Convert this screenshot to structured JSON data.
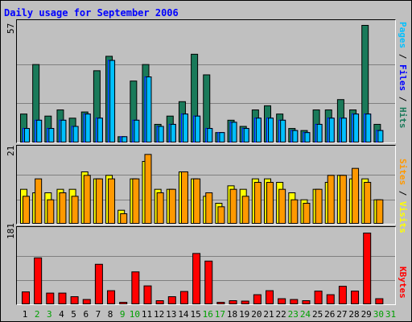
{
  "title": "Daily usage for September 2006",
  "colors": {
    "hits": "#1a7a5a",
    "files": "#00c0ff",
    "files_edge": "#0000ff",
    "pages": "#00c0ff",
    "sites": "#ff9900",
    "visits": "#ffff00",
    "kbytes": "#ff0000",
    "weekend_day": "#00a000"
  },
  "chart_data": [
    {
      "type": "bar",
      "ylim": [
        0,
        57
      ],
      "ymax_label": "57",
      "right_label": [
        {
          "text": "Pages",
          "color": "#00c0ff"
        },
        {
          "text": " / ",
          "color": "#000000"
        },
        {
          "text": "Files",
          "color": "#0000ff"
        },
        {
          "text": " / ",
          "color": "#000000"
        },
        {
          "text": "Hits",
          "color": "#1a7a5a"
        }
      ],
      "categories": [
        "1",
        "2",
        "3",
        "4",
        "5",
        "6",
        "7",
        "8",
        "9",
        "10",
        "11",
        "12",
        "13",
        "14",
        "15",
        "16",
        "17",
        "18",
        "19",
        "20",
        "21",
        "22",
        "23",
        "24",
        "25",
        "26",
        "27",
        "28",
        "29",
        "30",
        "31"
      ],
      "series": [
        {
          "name": "Hits",
          "values": [
            14,
            38,
            13,
            16,
            12,
            15,
            35,
            42,
            3,
            30,
            38,
            9,
            13,
            20,
            43,
            33,
            5,
            11,
            8,
            16,
            18,
            14,
            7,
            6,
            16,
            16,
            21,
            16,
            57,
            9,
            0
          ]
        },
        {
          "name": "Files",
          "values": [
            7,
            11,
            7,
            11,
            8,
            14,
            12,
            40,
            3,
            11,
            32,
            8,
            9,
            14,
            13,
            7,
            5,
            10,
            7,
            12,
            12,
            11,
            6,
            5,
            9,
            12,
            12,
            14,
            14,
            6,
            0
          ]
        },
        {
          "name": "Pages",
          "values": [
            7,
            11,
            7,
            11,
            8,
            14,
            12,
            40,
            3,
            11,
            32,
            8,
            9,
            14,
            13,
            7,
            5,
            10,
            7,
            12,
            12,
            11,
            6,
            5,
            9,
            12,
            12,
            14,
            14,
            6,
            0
          ]
        }
      ]
    },
    {
      "type": "bar",
      "ylim": [
        0,
        21
      ],
      "ymax_label": "21",
      "right_label": [
        {
          "text": "Sites",
          "color": "#ff9900"
        },
        {
          "text": " / ",
          "color": "#000000"
        },
        {
          "text": "Visits",
          "color": "#ffff00"
        }
      ],
      "categories": [
        "1",
        "2",
        "3",
        "4",
        "5",
        "6",
        "7",
        "8",
        "9",
        "10",
        "11",
        "12",
        "13",
        "14",
        "15",
        "16",
        "17",
        "18",
        "19",
        "20",
        "21",
        "22",
        "23",
        "24",
        "25",
        "26",
        "27",
        "28",
        "29",
        "30",
        "31"
      ],
      "series": [
        {
          "name": "Visits",
          "values": [
            10,
            9,
            9,
            10,
            10,
            15,
            13,
            14,
            4,
            13,
            18,
            10,
            10,
            15,
            13,
            8,
            6,
            11,
            10,
            13,
            13,
            12,
            9,
            7,
            10,
            12,
            14,
            13,
            13,
            7,
            0
          ]
        },
        {
          "name": "Sites",
          "values": [
            8,
            13,
            7,
            9,
            8,
            14,
            13,
            13,
            3,
            13,
            20,
            9,
            10,
            15,
            13,
            9,
            5,
            10,
            8,
            12,
            12,
            10,
            7,
            6,
            10,
            14,
            14,
            16,
            12,
            7,
            0
          ]
        }
      ]
    },
    {
      "type": "bar",
      "ylim": [
        0,
        181
      ],
      "ymax_label": "181",
      "right_label": [
        {
          "text": "KBytes",
          "color": "#ff0000"
        }
      ],
      "categories": [
        "1",
        "2",
        "3",
        "4",
        "5",
        "6",
        "7",
        "8",
        "9",
        "10",
        "11",
        "12",
        "13",
        "14",
        "15",
        "16",
        "17",
        "18",
        "19",
        "20",
        "21",
        "22",
        "23",
        "24",
        "25",
        "26",
        "27",
        "28",
        "29",
        "30",
        "31"
      ],
      "series": [
        {
          "name": "KBytes",
          "values": [
            32,
            117,
            29,
            29,
            20,
            13,
            101,
            35,
            6,
            82,
            47,
            10,
            20,
            33,
            128,
            109,
            6,
            10,
            9,
            25,
            35,
            15,
            13,
            10,
            34,
            25,
            46,
            34,
            179,
            15,
            0
          ]
        }
      ]
    }
  ],
  "day_labels": [
    {
      "text": "1",
      "weekend": false
    },
    {
      "text": "2",
      "weekend": true
    },
    {
      "text": "3",
      "weekend": true
    },
    {
      "text": "4",
      "weekend": false
    },
    {
      "text": "5",
      "weekend": false
    },
    {
      "text": "6",
      "weekend": false
    },
    {
      "text": "7",
      "weekend": false
    },
    {
      "text": "8",
      "weekend": false
    },
    {
      "text": "9",
      "weekend": true
    },
    {
      "text": "10",
      "weekend": true
    },
    {
      "text": "11",
      "weekend": false
    },
    {
      "text": "12",
      "weekend": false
    },
    {
      "text": "13",
      "weekend": false
    },
    {
      "text": "14",
      "weekend": false
    },
    {
      "text": "15",
      "weekend": false
    },
    {
      "text": "16",
      "weekend": true
    },
    {
      "text": "17",
      "weekend": true
    },
    {
      "text": "18",
      "weekend": false
    },
    {
      "text": "19",
      "weekend": false
    },
    {
      "text": "20",
      "weekend": false
    },
    {
      "text": "21",
      "weekend": false
    },
    {
      "text": "22",
      "weekend": false
    },
    {
      "text": "23",
      "weekend": true
    },
    {
      "text": "24",
      "weekend": true
    },
    {
      "text": "25",
      "weekend": false
    },
    {
      "text": "26",
      "weekend": false
    },
    {
      "text": "27",
      "weekend": false
    },
    {
      "text": "28",
      "weekend": false
    },
    {
      "text": "29",
      "weekend": false
    },
    {
      "text": "30",
      "weekend": true
    },
    {
      "text": "31",
      "weekend": true
    }
  ]
}
